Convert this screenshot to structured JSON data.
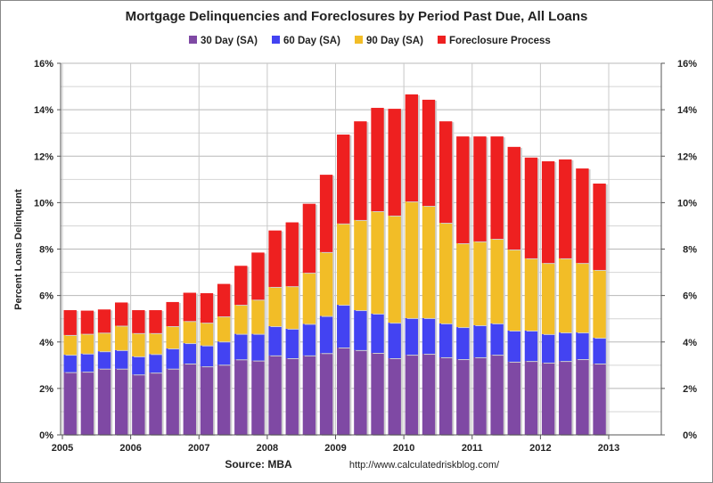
{
  "chart_data": {
    "type": "bar",
    "stacked": true,
    "title": "Mortgage Delinquencies and Foreclosures by Period Past Due, All Loans",
    "ylabel": "Percent Loans Delinquent",
    "xlabel": "",
    "ylim": [
      0,
      16
    ],
    "yticks": [
      "0%",
      "2%",
      "4%",
      "6%",
      "8%",
      "10%",
      "12%",
      "14%",
      "16%"
    ],
    "xticks": [
      "2005",
      "2006",
      "2007",
      "2008",
      "2009",
      "2010",
      "2011",
      "2012",
      "2013"
    ],
    "xlim": [
      2005,
      2013.75
    ],
    "grid": true,
    "legend": "top",
    "source": "Source: MBA",
    "url": "http://www.calculatedriskblog.com/",
    "categories": [
      "2005Q1",
      "2005Q2",
      "2005Q3",
      "2005Q4",
      "2006Q1",
      "2006Q2",
      "2006Q3",
      "2006Q4",
      "2007Q1",
      "2007Q2",
      "2007Q3",
      "2007Q4",
      "2008Q1",
      "2008Q2",
      "2008Q3",
      "2008Q4",
      "2009Q1",
      "2009Q2",
      "2009Q3",
      "2009Q4",
      "2010Q1",
      "2010Q2",
      "2010Q3",
      "2010Q4",
      "2011Q1",
      "2011Q2",
      "2011Q3",
      "2011Q4",
      "2012Q1",
      "2012Q2",
      "2012Q3",
      "2012Q4"
    ],
    "series": [
      {
        "name": "30 Day (SA)",
        "color": "#7f49a4",
        "values": [
          2.7,
          2.72,
          2.85,
          2.85,
          2.6,
          2.68,
          2.85,
          3.07,
          2.95,
          3.02,
          3.25,
          3.2,
          3.42,
          3.3,
          3.42,
          3.52,
          3.76,
          3.65,
          3.53,
          3.3,
          3.45,
          3.49,
          3.34,
          3.26,
          3.34,
          3.45,
          3.15,
          3.18,
          3.11,
          3.18,
          3.26,
          3.07
        ]
      },
      {
        "name": "60 Day (SA)",
        "color": "#4343f2",
        "values": [
          0.75,
          0.78,
          0.75,
          0.8,
          0.78,
          0.8,
          0.87,
          0.88,
          0.9,
          1.0,
          1.1,
          1.15,
          1.26,
          1.27,
          1.36,
          1.6,
          1.84,
          1.72,
          1.69,
          1.53,
          1.58,
          1.54,
          1.46,
          1.38,
          1.38,
          1.35,
          1.34,
          1.31,
          1.23,
          1.23,
          1.15,
          1.11
        ]
      },
      {
        "name": "90 Day (SA)",
        "color": "#f2bd27",
        "values": [
          0.85,
          0.85,
          0.8,
          1.05,
          1.0,
          0.9,
          0.96,
          0.95,
          0.98,
          1.08,
          1.25,
          1.47,
          1.69,
          1.83,
          2.2,
          2.75,
          3.5,
          3.88,
          4.41,
          4.61,
          5.02,
          4.83,
          4.33,
          3.61,
          3.61,
          3.64,
          3.49,
          3.11,
          3.06,
          3.19,
          2.99,
          2.92
        ]
      },
      {
        "name": "Foreclosure Process",
        "color": "#ee2020",
        "values": [
          1.07,
          1.0,
          1.0,
          1.0,
          0.99,
          0.99,
          1.04,
          1.22,
          1.27,
          1.4,
          1.68,
          2.03,
          2.43,
          2.75,
          2.97,
          3.33,
          3.83,
          4.25,
          4.45,
          4.6,
          4.61,
          4.57,
          4.37,
          4.6,
          4.52,
          4.41,
          4.42,
          4.34,
          4.38,
          4.26,
          4.07,
          3.72
        ]
      }
    ]
  }
}
